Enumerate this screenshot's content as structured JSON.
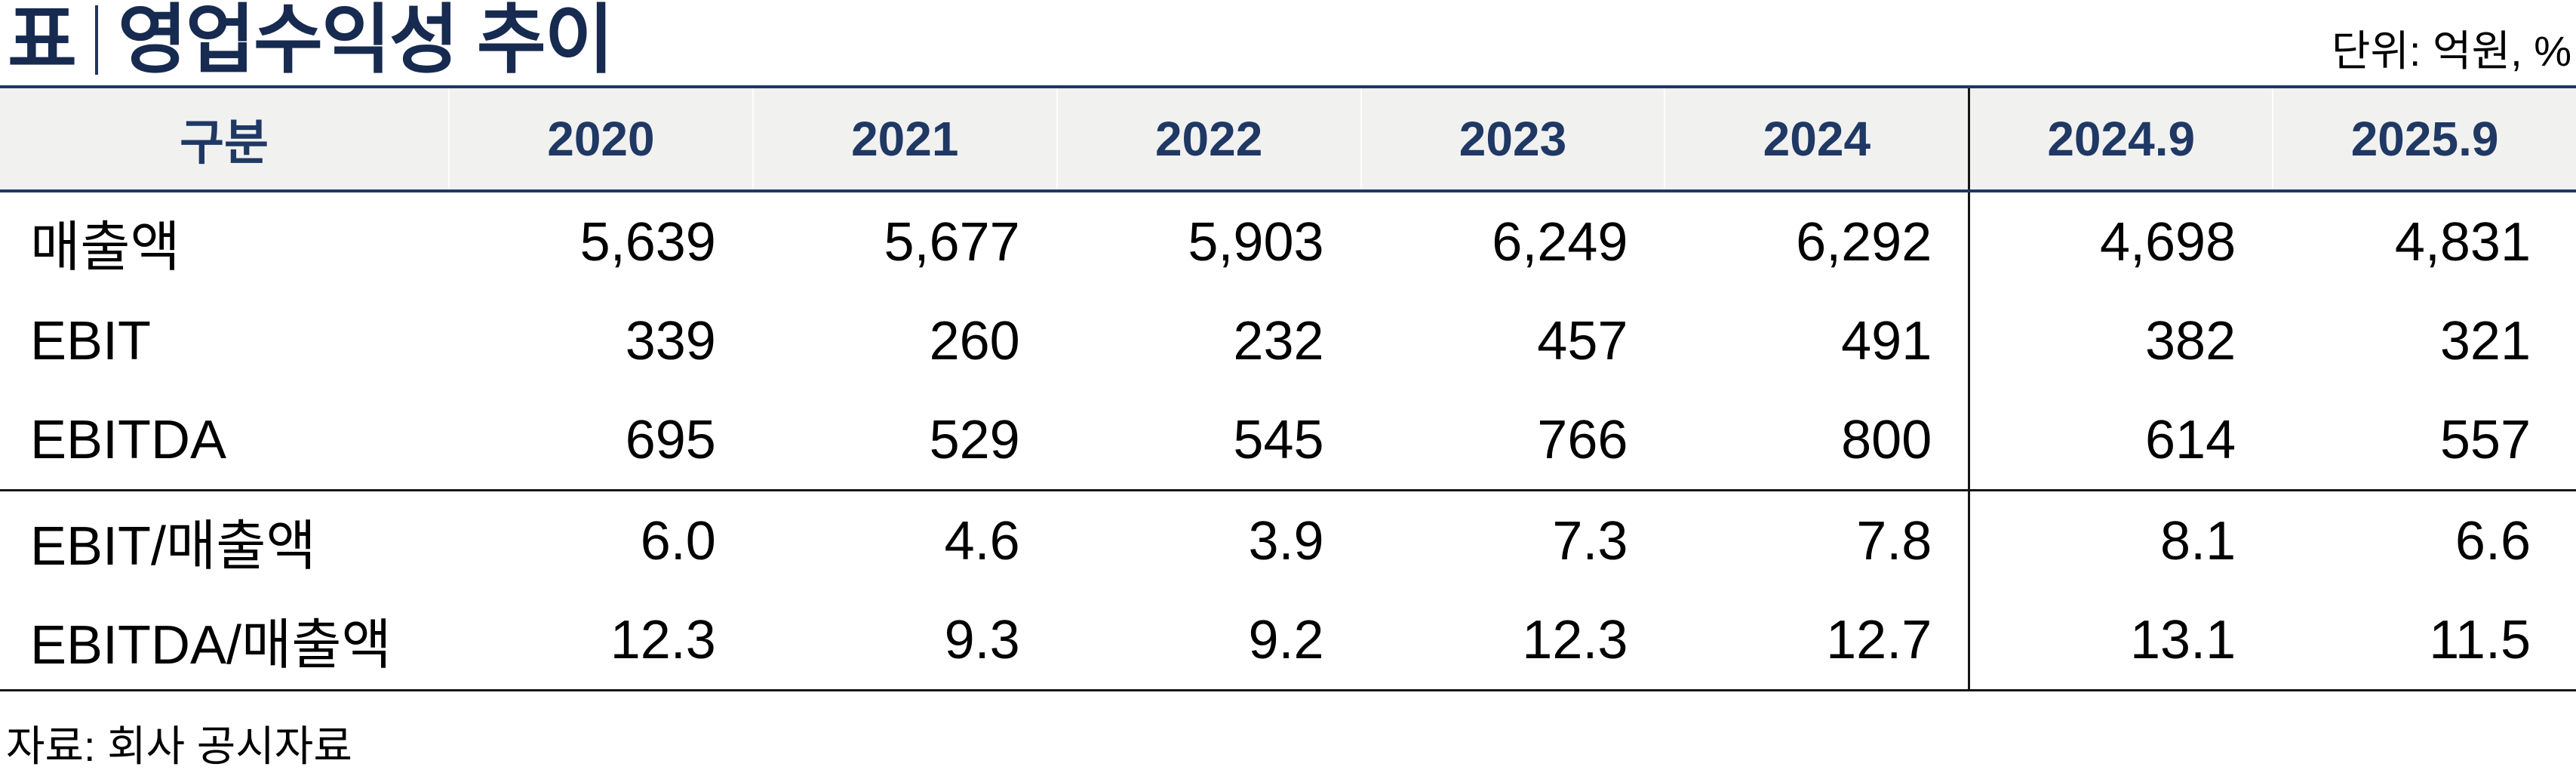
{
  "title": {
    "prefix": "표",
    "text": "영업수익성 추이",
    "unit": "단위: 억원, %"
  },
  "table": {
    "columns": [
      "구분",
      "2020",
      "2021",
      "2022",
      "2023",
      "2024",
      "2024.9",
      "2025.9"
    ],
    "rows": [
      {
        "label": "매출액",
        "values": [
          "5,639",
          "5,677",
          "5,903",
          "6,249",
          "6,292",
          "4,698",
          "4,831"
        ]
      },
      {
        "label": "EBIT",
        "values": [
          "339",
          "260",
          "232",
          "457",
          "491",
          "382",
          "321"
        ]
      },
      {
        "label": "EBITDA",
        "values": [
          "695",
          "529",
          "545",
          "766",
          "800",
          "614",
          "557"
        ]
      },
      {
        "label": "EBIT/매출액",
        "values": [
          "6.0",
          "4.6",
          "3.9",
          "7.3",
          "7.8",
          "8.1",
          "6.6"
        ]
      },
      {
        "label": "EBITDA/매출액",
        "values": [
          "12.3",
          "9.3",
          "9.2",
          "12.3",
          "12.7",
          "13.1",
          "11.5"
        ]
      }
    ]
  },
  "footer": {
    "source": "자료: 회사 공시자료"
  },
  "colors": {
    "navy_border": "#1f3864",
    "title_navy": "#172a50",
    "header_bg": "#f1f1f0",
    "black_line": "#161616"
  },
  "chart_data": {
    "type": "table",
    "title": "영업수익성 추이",
    "unit": "억원, %",
    "categories": [
      "2020",
      "2021",
      "2022",
      "2023",
      "2024",
      "2024.9",
      "2025.9"
    ],
    "series": [
      {
        "name": "매출액",
        "values": [
          5639,
          5677,
          5903,
          6249,
          6292,
          4698,
          4831
        ]
      },
      {
        "name": "EBIT",
        "values": [
          339,
          260,
          232,
          457,
          491,
          382,
          321
        ]
      },
      {
        "name": "EBITDA",
        "values": [
          695,
          529,
          545,
          766,
          800,
          614,
          557
        ]
      },
      {
        "name": "EBIT/매출액",
        "values": [
          6.0,
          4.6,
          3.9,
          7.3,
          7.8,
          8.1,
          6.6
        ]
      },
      {
        "name": "EBITDA/매출액",
        "values": [
          12.3,
          9.3,
          9.2,
          12.3,
          12.7,
          13.1,
          11.5
        ]
      }
    ]
  }
}
